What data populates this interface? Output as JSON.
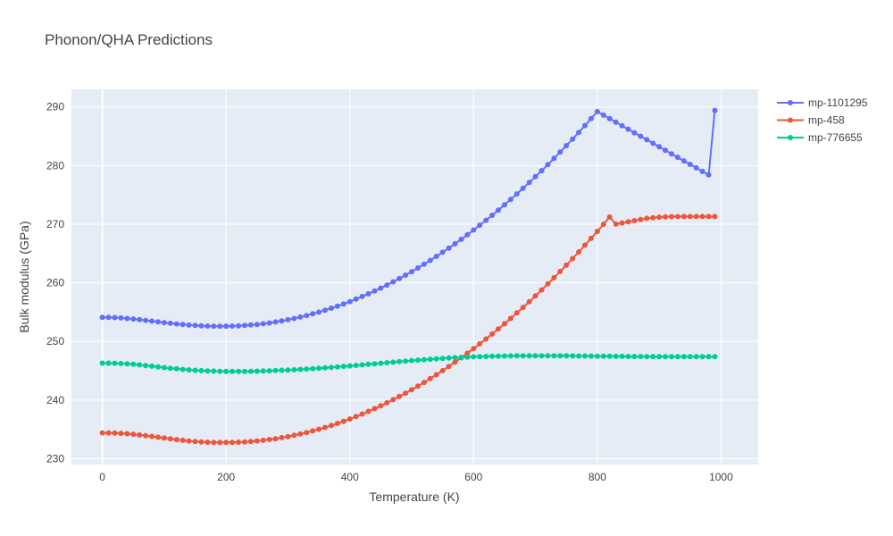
{
  "chart_data": {
    "type": "line",
    "title": "Phonon/QHA Predictions",
    "xlabel": "Temperature (K)",
    "ylabel": "Bulk modulus (GPa)",
    "xlim": [
      -50,
      1060
    ],
    "ylim": [
      229,
      293
    ],
    "x_ticks": [
      0,
      200,
      400,
      600,
      800,
      1000
    ],
    "y_ticks": [
      230,
      240,
      250,
      260,
      270,
      280,
      290
    ],
    "grid": true,
    "legend_position": "top-right",
    "x": [
      0,
      10,
      20,
      30,
      40,
      50,
      60,
      70,
      80,
      90,
      100,
      110,
      120,
      130,
      140,
      150,
      160,
      170,
      180,
      190,
      200,
      210,
      220,
      230,
      240,
      250,
      260,
      270,
      280,
      290,
      300,
      310,
      320,
      330,
      340,
      350,
      360,
      370,
      380,
      390,
      400,
      410,
      420,
      430,
      440,
      450,
      460,
      470,
      480,
      490,
      500,
      510,
      520,
      530,
      540,
      550,
      560,
      570,
      580,
      590,
      600,
      610,
      620,
      630,
      640,
      650,
      660,
      670,
      680,
      690,
      700,
      710,
      720,
      730,
      740,
      750,
      760,
      770,
      780,
      790,
      800,
      810,
      820,
      830,
      840,
      850,
      860,
      870,
      880,
      890,
      900,
      910,
      920,
      930,
      940,
      950,
      960,
      970,
      980,
      990
    ],
    "series": [
      {
        "name": "mp-1101295",
        "color": "#636efa",
        "values": [
          254.1,
          254.1,
          254.06,
          254.0,
          253.92,
          253.82,
          253.71,
          253.59,
          253.46,
          253.33,
          253.21,
          253.09,
          252.98,
          252.88,
          252.79,
          252.72,
          252.66,
          252.62,
          252.6,
          252.6,
          252.6,
          252.62,
          252.66,
          252.72,
          252.8,
          252.9,
          253.02,
          253.16,
          253.32,
          253.5,
          253.7,
          253.92,
          254.16,
          254.42,
          254.7,
          255.0,
          255.32,
          255.66,
          256.02,
          256.4,
          256.8,
          257.22,
          257.66,
          258.12,
          258.6,
          259.1,
          259.62,
          260.16,
          260.72,
          261.3,
          261.9,
          262.52,
          263.16,
          263.82,
          264.5,
          265.2,
          265.92,
          266.66,
          267.42,
          268.2,
          269.0,
          269.82,
          270.66,
          271.52,
          272.4,
          273.3,
          274.22,
          275.16,
          276.12,
          277.1,
          278.1,
          279.12,
          280.16,
          281.22,
          282.3,
          283.4,
          284.52,
          285.66,
          286.82,
          288.0,
          289.2,
          288.6,
          288.0,
          287.4,
          286.8,
          286.2,
          285.6,
          285.0,
          284.4,
          283.8,
          283.2,
          282.6,
          282.0,
          281.4,
          280.8,
          280.2,
          279.6,
          279.0,
          278.4,
          289.4
        ]
      },
      {
        "name": "mp-458",
        "color": "#ef553b",
        "values": [
          234.4,
          234.4,
          234.37,
          234.32,
          234.25,
          234.16,
          234.05,
          233.93,
          233.8,
          233.66,
          233.52,
          233.38,
          233.25,
          233.13,
          233.02,
          232.93,
          232.86,
          232.81,
          232.78,
          232.77,
          232.77,
          232.78,
          232.81,
          232.86,
          232.93,
          233.02,
          233.13,
          233.26,
          233.41,
          233.58,
          233.77,
          233.98,
          234.21,
          234.46,
          234.73,
          235.02,
          235.33,
          235.66,
          236.01,
          236.38,
          236.77,
          237.18,
          237.61,
          238.06,
          238.53,
          239.02,
          239.53,
          240.06,
          240.61,
          241.18,
          241.77,
          242.38,
          243.01,
          243.66,
          244.33,
          245.02,
          245.73,
          246.46,
          247.21,
          247.98,
          248.77,
          249.58,
          250.41,
          251.26,
          252.13,
          253.02,
          253.93,
          254.86,
          255.81,
          256.78,
          257.77,
          258.78,
          259.81,
          260.86,
          261.93,
          263.02,
          264.13,
          265.26,
          266.41,
          267.58,
          268.77,
          269.98,
          271.21,
          270.0,
          270.2,
          270.4,
          270.6,
          270.8,
          271.0,
          271.1,
          271.2,
          271.25,
          271.28,
          271.3,
          271.3,
          271.3,
          271.3,
          271.3,
          271.3,
          271.3
        ]
      },
      {
        "name": "mp-776655",
        "color": "#00cc96",
        "values": [
          246.3,
          246.3,
          246.28,
          246.24,
          246.18,
          246.1,
          246.0,
          245.89,
          245.78,
          245.66,
          245.54,
          245.43,
          245.33,
          245.23,
          245.15,
          245.08,
          245.02,
          244.97,
          244.94,
          244.91,
          244.9,
          244.89,
          244.89,
          244.9,
          244.91,
          244.93,
          244.96,
          244.99,
          245.03,
          245.07,
          245.12,
          245.17,
          245.23,
          245.29,
          245.36,
          245.43,
          245.5,
          245.58,
          245.66,
          245.74,
          245.83,
          245.92,
          246.01,
          246.1,
          246.19,
          246.28,
          246.37,
          246.46,
          246.55,
          246.64,
          246.73,
          246.81,
          246.89,
          246.97,
          247.04,
          247.11,
          247.17,
          247.23,
          247.28,
          247.33,
          247.37,
          247.41,
          247.44,
          247.47,
          247.49,
          247.51,
          247.53,
          247.54,
          247.55,
          247.56,
          247.56,
          247.56,
          247.56,
          247.56,
          247.55,
          247.54,
          247.53,
          247.52,
          247.51,
          247.5,
          247.49,
          247.48,
          247.47,
          247.46,
          247.45,
          247.44,
          247.43,
          247.42,
          247.41,
          247.4,
          247.4,
          247.4,
          247.4,
          247.4,
          247.4,
          247.4,
          247.4,
          247.4,
          247.4,
          247.4
        ]
      }
    ]
  }
}
